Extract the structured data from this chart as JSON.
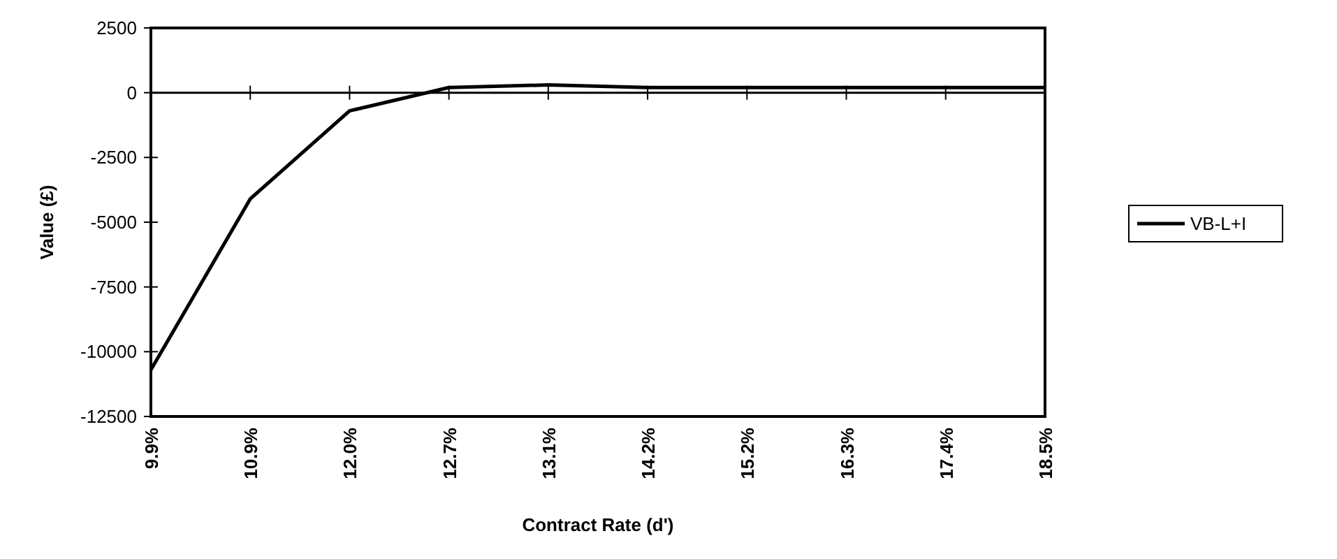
{
  "chart_data": {
    "type": "line",
    "xlabel": "Contract Rate (d')",
    "ylabel": "Value (£)",
    "categories": [
      "9.9%",
      "10.9%",
      "12.0%",
      "12.7%",
      "13.1%",
      "14.2%",
      "15.2%",
      "16.3%",
      "17.4%",
      "18.5%"
    ],
    "series": [
      {
        "name": "VB-L+I",
        "color": "#000000",
        "values": [
          -10700,
          -4100,
          -700,
          200,
          300,
          200,
          200,
          200,
          200,
          200
        ]
      }
    ],
    "ylim": [
      -12500,
      2500
    ],
    "yticks": [
      -12500,
      -10000,
      -7500,
      -5000,
      -2500,
      0,
      2500
    ],
    "legend": "right",
    "line_style": "solid"
  }
}
